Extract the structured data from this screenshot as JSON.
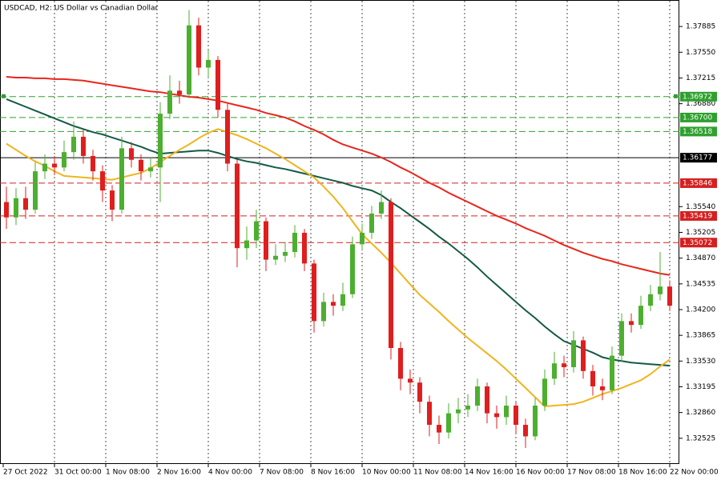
{
  "chart_data": {
    "type": "candlestick",
    "title": "USDCAD, H2:  US Dollar vs Canadian Dollar",
    "ylim": [
      1.3219,
      1.3823
    ],
    "yticks": [
      1.37885,
      {
        "value": 1.3755,
        "label": "1.37550"
      },
      1.37215,
      {
        "value": 1.3688,
        "label": "1.36880"
      },
      {
        "value": 1.3554,
        "label": "1.35540"
      },
      1.35205,
      {
        "value": 1.3487,
        "label": "1.34870"
      },
      1.34535,
      {
        "value": 1.342,
        "label": "1.34200"
      },
      1.33865,
      {
        "value": 1.3353,
        "label": "1.33530"
      },
      1.33195,
      {
        "value": 1.3286,
        "label": "1.32860"
      },
      1.32525
    ],
    "x_labels": [
      "27 Oct 2022",
      "31 Oct 00:00",
      "1 Nov 08:00",
      "2 Nov 16:00",
      "4 Nov 00:00",
      "7 Nov 08:00",
      "8 Nov 16:00",
      "10 Nov 00:00",
      "11 Nov 08:00",
      "14 Nov 16:00",
      "16 Nov 00:00",
      "17 Nov 08:00",
      "18 Nov 16:00",
      "22 Nov 00:00"
    ],
    "up_color": "#4caf2f",
    "down_color": "#e01e1e",
    "open": [
      1.356,
      1.354,
      1.3565,
      1.355,
      1.36,
      1.361,
      1.3605,
      1.3625,
      1.3645,
      1.362,
      1.36,
      1.3575,
      1.355,
      1.363,
      1.3615,
      1.36,
      1.3605,
      1.3675,
      1.3705,
      1.37,
      1.379,
      1.3735,
      1.3745,
      1.368,
      1.361,
      1.35,
      1.351,
      1.3535,
      1.3485,
      1.349,
      1.3495,
      1.352,
      1.348,
      1.3405,
      1.343,
      1.3425,
      1.344,
      1.3505,
      1.352,
      1.3545,
      1.356,
      1.337,
      1.333,
      1.3325,
      1.33,
      1.327,
      1.326,
      1.3285,
      1.329,
      1.3295,
      1.332,
      1.3285,
      1.328,
      1.3295,
      1.327,
      1.3255,
      1.3295,
      1.333,
      1.335,
      1.3345,
      1.338,
      1.334,
      1.332,
      1.3315,
      1.336,
      1.3405,
      1.34,
      1.3425,
      1.344,
      1.345
    ],
    "high": [
      1.358,
      1.3578,
      1.358,
      1.3612,
      1.3622,
      1.362,
      1.364,
      1.3665,
      1.3655,
      1.3628,
      1.3608,
      1.3582,
      1.3645,
      1.3638,
      1.3622,
      1.3618,
      1.369,
      1.3725,
      1.3718,
      1.381,
      1.38,
      1.3758,
      1.375,
      1.3688,
      1.3615,
      1.3528,
      1.355,
      1.354,
      1.3505,
      1.3508,
      1.353,
      1.3525,
      1.3485,
      1.3442,
      1.344,
      1.3455,
      1.3515,
      1.3532,
      1.3555,
      1.3575,
      1.3565,
      1.3378,
      1.3342,
      1.3332,
      1.3308,
      1.3282,
      1.3298,
      1.3305,
      1.331,
      1.333,
      1.3325,
      1.3295,
      1.3308,
      1.33,
      1.3278,
      1.3305,
      1.3342,
      1.3365,
      1.336,
      1.3392,
      1.3385,
      1.3348,
      1.333,
      1.3372,
      1.3415,
      1.3415,
      1.3438,
      1.3452,
      1.3495,
      1.3458
    ],
    "low": [
      1.3525,
      1.353,
      1.3538,
      1.3545,
      1.359,
      1.3595,
      1.36,
      1.3615,
      1.361,
      1.3588,
      1.356,
      1.3535,
      1.3545,
      1.3605,
      1.3588,
      1.3592,
      1.356,
      1.3668,
      1.3688,
      1.3695,
      1.3725,
      1.3722,
      1.367,
      1.36,
      1.3475,
      1.3485,
      1.35,
      1.347,
      1.3478,
      1.3482,
      1.3488,
      1.347,
      1.339,
      1.3398,
      1.3412,
      1.3418,
      1.3435,
      1.3498,
      1.3512,
      1.3538,
      1.3355,
      1.3315,
      1.331,
      1.3285,
      1.3255,
      1.3245,
      1.3252,
      1.3272,
      1.328,
      1.3288,
      1.3272,
      1.3265,
      1.327,
      1.3258,
      1.324,
      1.325,
      1.3288,
      1.3322,
      1.3332,
      1.3338,
      1.333,
      1.3308,
      1.3302,
      1.331,
      1.3352,
      1.339,
      1.3395,
      1.3418,
      1.3432,
      1.3418
    ],
    "close": [
      1.354,
      1.3565,
      1.355,
      1.36,
      1.361,
      1.3605,
      1.3625,
      1.3645,
      1.362,
      1.36,
      1.3575,
      1.355,
      1.363,
      1.3615,
      1.36,
      1.3605,
      1.3675,
      1.3705,
      1.37,
      1.379,
      1.3735,
      1.3745,
      1.368,
      1.361,
      1.35,
      1.351,
      1.3535,
      1.3485,
      1.349,
      1.3495,
      1.352,
      1.348,
      1.3405,
      1.343,
      1.3425,
      1.344,
      1.3505,
      1.352,
      1.3545,
      1.356,
      1.337,
      1.333,
      1.3325,
      1.33,
      1.327,
      1.326,
      1.3285,
      1.329,
      1.3295,
      1.332,
      1.3285,
      1.328,
      1.3295,
      1.327,
      1.3255,
      1.3295,
      1.333,
      1.335,
      1.3345,
      1.338,
      1.334,
      1.332,
      1.3315,
      1.336,
      1.3405,
      1.34,
      1.3425,
      1.344,
      1.345,
      1.3425
    ],
    "series": [
      {
        "color": "#e8261c",
        "values": [
          1.3723,
          1.3722,
          1.3722,
          1.3721,
          1.3721,
          1.372,
          1.372,
          1.3719,
          1.3718,
          1.3716,
          1.3714,
          1.3712,
          1.371,
          1.3708,
          1.3706,
          1.3704,
          1.3703,
          1.3701,
          1.3699,
          1.3697,
          1.3696,
          1.3694,
          1.3692,
          1.3689,
          1.3686,
          1.3683,
          1.368,
          1.3676,
          1.3673,
          1.367,
          1.3665,
          1.3659,
          1.3654,
          1.3648,
          1.3641,
          1.3635,
          1.3631,
          1.3627,
          1.3623,
          1.3618,
          1.3612,
          1.3605,
          1.3599,
          1.3592,
          1.3585,
          1.3579,
          1.3572,
          1.3566,
          1.356,
          1.3554,
          1.3548,
          1.3542,
          1.3537,
          1.3532,
          1.3526,
          1.3521,
          1.3516,
          1.351,
          1.3504,
          1.3499,
          1.3494,
          1.349,
          1.3486,
          1.3483,
          1.3479,
          1.3476,
          1.3473,
          1.347,
          1.3467,
          1.3465
        ]
      },
      {
        "color": "#145a46",
        "values": [
          1.3694,
          1.3689,
          1.3684,
          1.3679,
          1.3674,
          1.3669,
          1.3664,
          1.3659,
          1.3655,
          1.3651,
          1.3648,
          1.3644,
          1.364,
          1.3636,
          1.3632,
          1.3627,
          1.3623,
          1.3624,
          1.3625,
          1.3626,
          1.3627,
          1.3627,
          1.3624,
          1.362,
          1.3616,
          1.3613,
          1.3611,
          1.3608,
          1.3605,
          1.3603,
          1.36,
          1.3597,
          1.3594,
          1.3591,
          1.3588,
          1.3585,
          1.3581,
          1.3578,
          1.3575,
          1.3569,
          1.356,
          1.3552,
          1.3543,
          1.3534,
          1.3525,
          1.3515,
          1.3506,
          1.3496,
          1.3486,
          1.3475,
          1.3463,
          1.3452,
          1.3441,
          1.343,
          1.3419,
          1.3409,
          1.3398,
          1.3388,
          1.3379,
          1.3374,
          1.3369,
          1.3364,
          1.3358,
          1.3355,
          1.3353,
          1.3351,
          1.335,
          1.3349,
          1.3348,
          1.3347
        ]
      },
      {
        "color": "#f0b41e",
        "values": [
          1.3636,
          1.3628,
          1.362,
          1.3613,
          1.3607,
          1.36,
          1.3594,
          1.3593,
          1.3592,
          1.3591,
          1.359,
          1.3589,
          1.3592,
          1.3595,
          1.3598,
          1.3604,
          1.3612,
          1.362,
          1.3628,
          1.3635,
          1.3643,
          1.365,
          1.3655,
          1.3651,
          1.3647,
          1.3642,
          1.3636,
          1.363,
          1.3623,
          1.3616,
          1.3608,
          1.36,
          1.3592,
          1.358,
          1.3567,
          1.3552,
          1.3535,
          1.3518,
          1.3506,
          1.3494,
          1.3481,
          1.3467,
          1.3453,
          1.3439,
          1.3428,
          1.3417,
          1.3405,
          1.3394,
          1.3383,
          1.3373,
          1.3363,
          1.3353,
          1.3342,
          1.333,
          1.3318,
          1.3306,
          1.3294,
          1.3295,
          1.3296,
          1.3297,
          1.33,
          1.3305,
          1.331,
          1.3314,
          1.3318,
          1.3323,
          1.3328,
          1.3336,
          1.3346,
          1.3355
        ]
      }
    ],
    "levels": [
      {
        "value": 1.36972,
        "color": "#2ea02e",
        "style": "dashed"
      },
      {
        "value": 1.367,
        "label": "1.36700",
        "color": "#2ea02e",
        "style": "dashed"
      },
      {
        "value": 1.36518,
        "color": "#2ea02e",
        "style": "dashed"
      },
      {
        "value": 1.36177,
        "color": "#000000",
        "style": "solid"
      },
      {
        "value": 1.35846,
        "color": "#d42020",
        "style": "dashed"
      },
      {
        "value": 1.35419,
        "color": "#d42020",
        "style": "dashed"
      },
      {
        "value": 1.35072,
        "color": "#d42020",
        "style": "dashed"
      }
    ]
  }
}
